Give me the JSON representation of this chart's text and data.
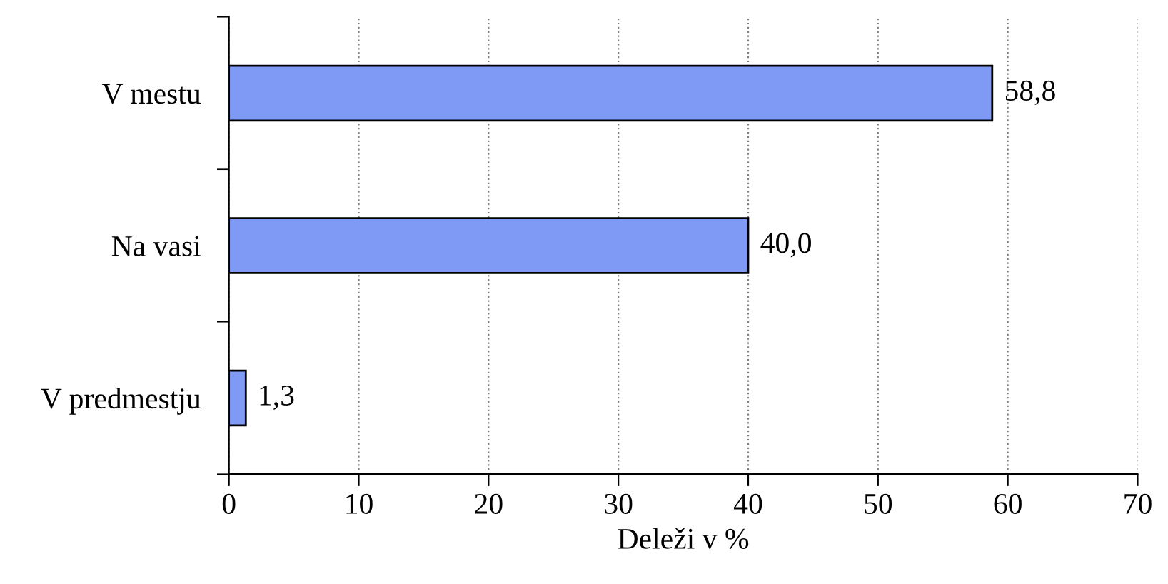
{
  "chart_data": {
    "type": "bar",
    "orientation": "horizontal",
    "categories": [
      "V mestu",
      "Na vasi",
      "V predmestju"
    ],
    "values": [
      58.8,
      40.0,
      1.3
    ],
    "value_labels": [
      "58,8",
      "40,0",
      "1,3"
    ],
    "color": "#7e9af4",
    "xlabel": "Deleži v %",
    "xlim": [
      0,
      70
    ],
    "xticks": [
      0,
      10,
      20,
      30,
      40,
      50,
      60,
      70
    ],
    "grid": "x",
    "legend": false
  }
}
